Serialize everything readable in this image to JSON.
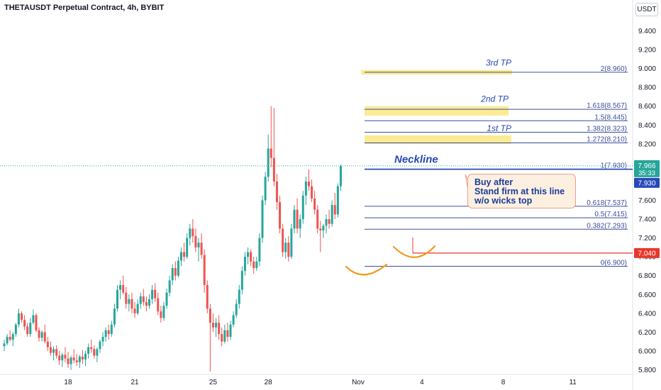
{
  "header": {
    "title": "THETAUSDT Perpetual Contract, 4h, BYBIT",
    "currency": "USDT"
  },
  "colors": {
    "up": "#26a69a",
    "down": "#ef5350",
    "fib_line": "#3c4f9c",
    "neckline": "#2748b8",
    "tp_zone": "#fbe98a",
    "stop_line": "#e8372d",
    "curve": "#f09a1e",
    "text_blue": "#2748b8"
  },
  "chart_data": {
    "type": "candlestick",
    "y_axis": {
      "ylim": [
        5.75,
        9.65
      ],
      "ticks": [
        "5.800",
        "6.000",
        "6.200",
        "6.400",
        "6.600",
        "6.800",
        "7.000",
        "7.200",
        "7.400",
        "7.600",
        "7.800",
        "8.000",
        "8.200",
        "8.400",
        "8.600",
        "8.800",
        "9.000",
        "9.200",
        "9.400"
      ]
    },
    "x_axis": {
      "ticks": [
        "18",
        "21",
        "25",
        "28",
        "Nov",
        "4",
        "8",
        "11"
      ]
    },
    "candles": [
      [
        6.05,
        6.12,
        6.0,
        6.08
      ],
      [
        6.08,
        6.18,
        6.06,
        6.15
      ],
      [
        6.15,
        6.22,
        6.1,
        6.12
      ],
      [
        6.12,
        6.2,
        6.05,
        6.18
      ],
      [
        6.18,
        6.3,
        6.15,
        6.28
      ],
      [
        6.28,
        6.45,
        6.25,
        6.4
      ],
      [
        6.4,
        6.42,
        6.3,
        6.33
      ],
      [
        6.33,
        6.38,
        6.22,
        6.26
      ],
      [
        6.26,
        6.3,
        6.15,
        6.18
      ],
      [
        6.18,
        6.35,
        6.15,
        6.3
      ],
      [
        6.3,
        6.44,
        6.28,
        6.38
      ],
      [
        6.38,
        6.4,
        6.2,
        6.22
      ],
      [
        6.22,
        6.25,
        6.1,
        6.14
      ],
      [
        6.14,
        6.22,
        6.1,
        6.2
      ],
      [
        6.2,
        6.28,
        6.08,
        6.1
      ],
      [
        6.1,
        6.15,
        6.0,
        6.04
      ],
      [
        6.04,
        6.1,
        5.95,
        5.98
      ],
      [
        5.98,
        6.05,
        5.9,
        6.02
      ],
      [
        6.02,
        6.06,
        5.92,
        5.95
      ],
      [
        5.95,
        6.0,
        5.85,
        5.9
      ],
      [
        5.9,
        5.98,
        5.83,
        5.96
      ],
      [
        5.96,
        6.04,
        5.88,
        5.92
      ],
      [
        5.92,
        5.99,
        5.82,
        5.86
      ],
      [
        5.86,
        5.95,
        5.8,
        5.93
      ],
      [
        5.93,
        6.02,
        5.87,
        5.9
      ],
      [
        5.9,
        5.97,
        5.84,
        5.88
      ],
      [
        5.88,
        5.96,
        5.82,
        5.94
      ],
      [
        5.94,
        6.01,
        5.86,
        5.91
      ],
      [
        5.91,
        6.0,
        5.84,
        5.97
      ],
      [
        5.97,
        6.08,
        5.92,
        6.04
      ],
      [
        6.04,
        6.12,
        5.98,
        6.02
      ],
      [
        6.02,
        6.06,
        5.92,
        5.95
      ],
      [
        5.95,
        6.04,
        5.88,
        6.02
      ],
      [
        6.02,
        6.12,
        5.98,
        6.1
      ],
      [
        6.1,
        6.2,
        6.05,
        6.15
      ],
      [
        6.15,
        6.25,
        6.1,
        6.22
      ],
      [
        6.22,
        6.28,
        6.12,
        6.18
      ],
      [
        6.18,
        6.32,
        6.15,
        6.28
      ],
      [
        6.28,
        6.5,
        6.25,
        6.45
      ],
      [
        6.45,
        6.7,
        6.42,
        6.65
      ],
      [
        6.65,
        6.75,
        6.55,
        6.7
      ],
      [
        6.7,
        6.8,
        6.6,
        6.62
      ],
      [
        6.62,
        6.68,
        6.45,
        6.5
      ],
      [
        6.5,
        6.6,
        6.42,
        6.55
      ],
      [
        6.55,
        6.62,
        6.4,
        6.45
      ],
      [
        6.45,
        6.52,
        6.35,
        6.4
      ],
      [
        6.4,
        6.55,
        6.38,
        6.5
      ],
      [
        6.5,
        6.62,
        6.45,
        6.58
      ],
      [
        6.58,
        6.66,
        6.48,
        6.52
      ],
      [
        6.52,
        6.58,
        6.42,
        6.48
      ],
      [
        6.48,
        6.6,
        6.45,
        6.55
      ],
      [
        6.55,
        6.7,
        6.5,
        6.65
      ],
      [
        6.65,
        6.72,
        6.52,
        6.56
      ],
      [
        6.56,
        6.62,
        6.38,
        6.42
      ],
      [
        6.42,
        6.48,
        6.3,
        6.35
      ],
      [
        6.35,
        6.52,
        6.32,
        6.48
      ],
      [
        6.48,
        6.66,
        6.45,
        6.62
      ],
      [
        6.62,
        6.8,
        6.58,
        6.75
      ],
      [
        6.75,
        6.92,
        6.7,
        6.88
      ],
      [
        6.88,
        6.95,
        6.75,
        6.8
      ],
      [
        6.8,
        7.0,
        6.78,
        6.96
      ],
      [
        6.96,
        7.1,
        6.9,
        7.05
      ],
      [
        7.05,
        7.15,
        6.95,
        7.0
      ],
      [
        7.0,
        7.25,
        6.98,
        7.2
      ],
      [
        7.2,
        7.35,
        7.12,
        7.3
      ],
      [
        7.3,
        7.4,
        7.15,
        7.22
      ],
      [
        7.22,
        7.3,
        7.05,
        7.1
      ],
      [
        7.1,
        7.2,
        6.95,
        7.15
      ],
      [
        7.15,
        7.25,
        6.98,
        7.02
      ],
      [
        7.02,
        7.08,
        6.62,
        6.7
      ],
      [
        6.7,
        6.75,
        6.4,
        6.45
      ],
      [
        6.45,
        6.5,
        5.78,
        6.3
      ],
      [
        6.3,
        6.4,
        6.2,
        6.25
      ],
      [
        6.25,
        6.35,
        6.15,
        6.3
      ],
      [
        6.3,
        6.38,
        6.12,
        6.18
      ],
      [
        6.18,
        6.25,
        6.05,
        6.1
      ],
      [
        6.1,
        6.28,
        6.08,
        6.22
      ],
      [
        6.22,
        6.3,
        6.1,
        6.15
      ],
      [
        6.15,
        6.32,
        6.12,
        6.28
      ],
      [
        6.28,
        6.42,
        6.25,
        6.38
      ],
      [
        6.38,
        6.55,
        6.35,
        6.5
      ],
      [
        6.5,
        6.7,
        6.45,
        6.65
      ],
      [
        6.65,
        6.9,
        6.6,
        6.85
      ],
      [
        6.85,
        7.05,
        6.8,
        7.0
      ],
      [
        7.0,
        7.1,
        6.92,
        7.05
      ],
      [
        7.05,
        7.08,
        6.9,
        6.95
      ],
      [
        6.95,
        7.0,
        6.82,
        6.88
      ],
      [
        6.88,
        7.0,
        6.85,
        6.95
      ],
      [
        6.95,
        7.25,
        6.9,
        7.2
      ],
      [
        7.2,
        7.65,
        7.15,
        7.6
      ],
      [
        7.6,
        7.9,
        7.55,
        7.85
      ],
      [
        7.85,
        8.3,
        7.8,
        8.15
      ],
      [
        8.15,
        8.6,
        7.95,
        8.05
      ],
      [
        8.05,
        8.58,
        7.75,
        7.8
      ],
      [
        7.8,
        7.88,
        7.5,
        7.58
      ],
      [
        7.58,
        7.65,
        7.25,
        7.3
      ],
      [
        7.3,
        7.35,
        7.0,
        7.05
      ],
      [
        7.05,
        7.2,
        6.98,
        7.15
      ],
      [
        7.15,
        7.22,
        6.95,
        7.0
      ],
      [
        7.0,
        7.35,
        6.98,
        7.3
      ],
      [
        7.3,
        7.55,
        7.25,
        7.5
      ],
      [
        7.5,
        7.62,
        7.25,
        7.3
      ],
      [
        7.3,
        7.45,
        7.2,
        7.4
      ],
      [
        7.4,
        7.7,
        7.35,
        7.65
      ],
      [
        7.65,
        7.85,
        7.55,
        7.8
      ],
      [
        7.8,
        7.93,
        7.7,
        7.75
      ],
      [
        7.75,
        7.82,
        7.58,
        7.62
      ],
      [
        7.62,
        7.7,
        7.45,
        7.5
      ],
      [
        7.5,
        7.55,
        7.25,
        7.3
      ],
      [
        7.3,
        7.38,
        7.05,
        7.28
      ],
      [
        7.28,
        7.35,
        7.2,
        7.33
      ],
      [
        7.33,
        7.45,
        7.25,
        7.4
      ],
      [
        7.4,
        7.5,
        7.3,
        7.35
      ],
      [
        7.35,
        7.6,
        7.32,
        7.55
      ],
      [
        7.55,
        7.68,
        7.4,
        7.45
      ],
      [
        7.45,
        7.78,
        7.42,
        7.75
      ],
      [
        7.75,
        7.98,
        7.7,
        7.966
      ]
    ],
    "last_price": "7.966",
    "countdown": "35:33",
    "fib_levels": [
      {
        "value": 8.96,
        "label": "2(8.960)"
      },
      {
        "value": 8.567,
        "label": "1.618(8.567)"
      },
      {
        "value": 8.445,
        "label": "1.5(8.445)"
      },
      {
        "value": 8.323,
        "label": "1.382(8.323)"
      },
      {
        "value": 8.21,
        "label": "1.272(8.210)"
      },
      {
        "value": 7.93,
        "label": "1(7.930)"
      },
      {
        "value": 7.537,
        "label": "0.618(7.537)"
      },
      {
        "value": 7.415,
        "label": "0.5(7.415)"
      },
      {
        "value": 7.293,
        "label": "0.382(7.293)"
      },
      {
        "value": 6.9,
        "label": "0(6.900)"
      }
    ],
    "price_badges": [
      {
        "value": 7.93,
        "label": "7.930",
        "color": "#2748b8"
      },
      {
        "value": 7.04,
        "label": "7.040",
        "color": "#e8372d"
      }
    ],
    "tp_zones": [
      {
        "label": "3rd TP",
        "top": 8.985,
        "bottom": 8.935
      },
      {
        "label": "2nd TP",
        "top": 8.6,
        "bottom": 8.5
      },
      {
        "label": "1st TP",
        "top": 8.29,
        "bottom": 8.2
      }
    ],
    "stop_level": 7.04,
    "neckline_value": 7.93
  },
  "annotations": {
    "neckline_label": "Neckline",
    "note": {
      "line1": "Buy after",
      "line2": "Stand firm at this line",
      "line3": "w/o wicks top"
    }
  }
}
